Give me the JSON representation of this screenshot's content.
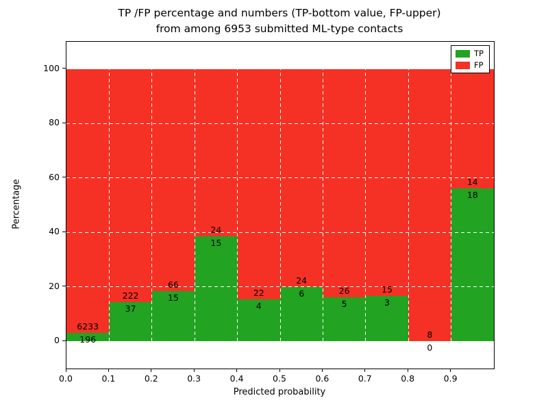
{
  "chart_data": {
    "type": "bar",
    "stacked": true,
    "title_line1": "TP /FP percentage and numbers (TP-bottom value, FP-upper)",
    "title_line2": "from among 6953 submitted ML-type contacts",
    "xlabel": "Predicted probability",
    "ylabel": "Percentage",
    "total_contacts": 6953,
    "x_tick_labels": [
      "0.0",
      "0.1",
      "0.2",
      "0.3",
      "0.4",
      "0.5",
      "0.6",
      "0.7",
      "0.8",
      "0.9"
    ],
    "y_tick_values": [
      0,
      20,
      40,
      60,
      80,
      100
    ],
    "ylim": [
      -10,
      110
    ],
    "grid": {
      "style": "dashed",
      "color": "#ffffff"
    },
    "legend_position": "upper right",
    "series": [
      {
        "name": "TP",
        "color": "#22a322",
        "counts": [
          196,
          37,
          15,
          15,
          4,
          6,
          5,
          3,
          0,
          18
        ]
      },
      {
        "name": "FP",
        "color": "#f53126",
        "counts": [
          6233,
          222,
          66,
          24,
          22,
          24,
          26,
          15,
          8,
          14
        ]
      }
    ],
    "bar_total_percent": 100
  }
}
